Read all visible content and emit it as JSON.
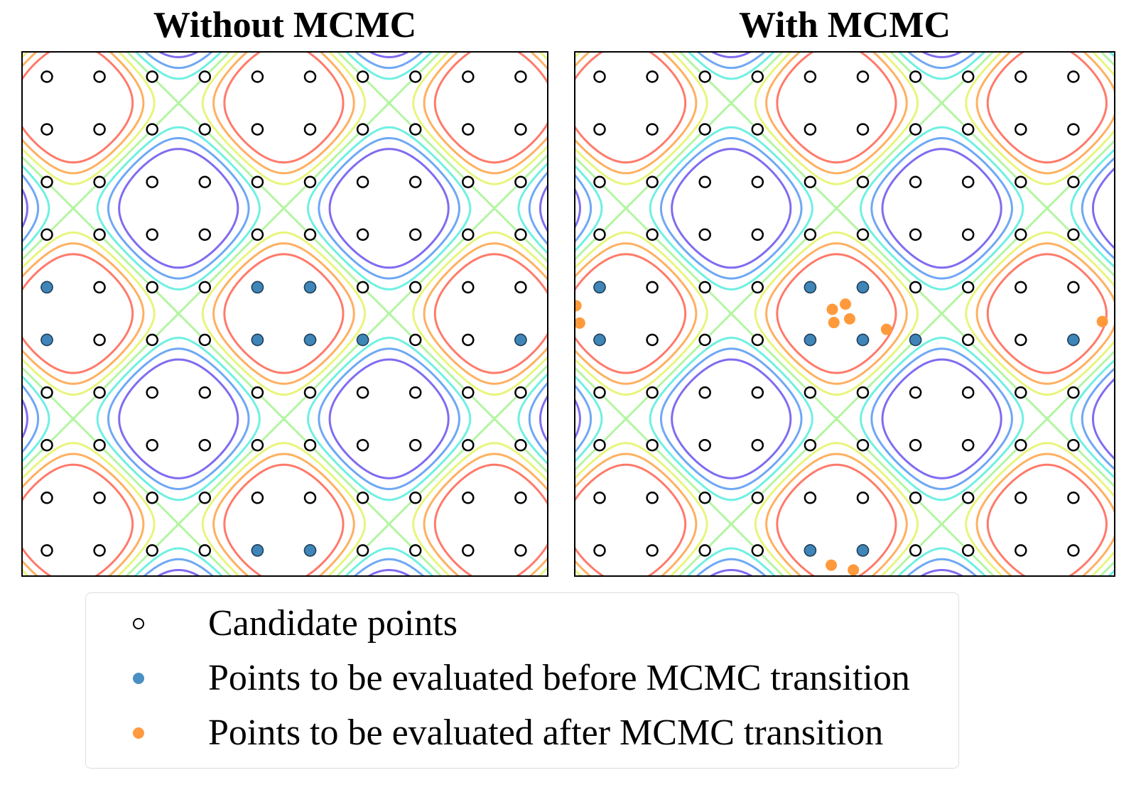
{
  "panels": [
    {
      "title": "Without MCMC",
      "grid_size": 10,
      "blue_points": [
        [
          0,
          4
        ],
        [
          0,
          5
        ],
        [
          4,
          4
        ],
        [
          5,
          4
        ],
        [
          4,
          5
        ],
        [
          5,
          5
        ],
        [
          6,
          5
        ],
        [
          9,
          5
        ],
        [
          4,
          9
        ],
        [
          5,
          9
        ]
      ],
      "orange_points": []
    },
    {
      "title": "With MCMC",
      "grid_size": 10,
      "blue_points": [
        [
          0,
          4
        ],
        [
          0,
          5
        ],
        [
          4,
          4
        ],
        [
          5,
          4
        ],
        [
          4,
          5
        ],
        [
          5,
          5
        ],
        [
          6,
          5
        ],
        [
          9,
          5
        ],
        [
          4,
          9
        ],
        [
          5,
          9
        ]
      ],
      "orange_points": [
        [
          -0.45,
          4.35
        ],
        [
          -0.38,
          4.68
        ],
        [
          4.42,
          4.42
        ],
        [
          4.67,
          4.32
        ],
        [
          4.75,
          4.6
        ],
        [
          4.45,
          4.67
        ],
        [
          5.45,
          4.8
        ],
        [
          4.4,
          9.28
        ],
        [
          4.82,
          9.37
        ],
        [
          9.55,
          4.65
        ]
      ]
    }
  ],
  "contour_colors": [
    "#7f6cf0",
    "#6fa8f5",
    "#6ff0e2",
    "#b4f5a3",
    "#e8f57c",
    "#ffb061",
    "#ff7a6a"
  ],
  "legend": [
    {
      "marker": "open",
      "label": "Candidate points"
    },
    {
      "marker": "blue",
      "label": "Points to be evaluated before MCMC transition"
    },
    {
      "marker": "orange",
      "label": "Points to be evaluated after MCMC transition"
    }
  ]
}
